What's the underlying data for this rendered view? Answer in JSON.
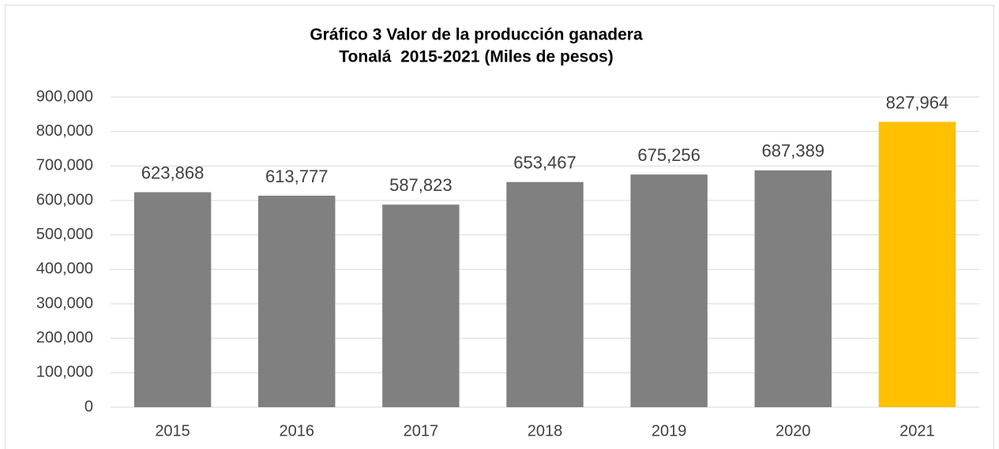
{
  "chart_data": {
    "type": "bar",
    "title": "Gráfico 3 Valor de la producción ganadera",
    "subtitle": "Tonalá  2015-2021 (Miles de pesos)",
    "categories": [
      "2015",
      "2016",
      "2017",
      "2018",
      "2019",
      "2020",
      "2021"
    ],
    "values": [
      623868,
      613777,
      587823,
      653467,
      675256,
      687389,
      827964
    ],
    "value_labels": [
      "623,868",
      "613,777",
      "587,823",
      "653,467",
      "675,256",
      "687,389",
      "827,964"
    ],
    "colors": [
      "#808080",
      "#808080",
      "#808080",
      "#808080",
      "#808080",
      "#808080",
      "#ffc000"
    ],
    "ylim": [
      0,
      900000
    ],
    "yticks": [
      0,
      {
        "value": 100000,
        "label": "100,000"
      },
      {
        "value": 200000,
        "label": "200,000"
      },
      {
        "value": 300000,
        "label": "300,000"
      },
      {
        "value": 400000,
        "label": "400,000"
      },
      {
        "value": 500000,
        "label": "500,000"
      },
      {
        "value": 600000,
        "label": "600,000"
      },
      {
        "value": 700000,
        "label": "700,000"
      },
      {
        "value": 800000,
        "label": "800,000"
      },
      {
        "value": 900000,
        "label": "900,000"
      }
    ],
    "grid": true
  }
}
